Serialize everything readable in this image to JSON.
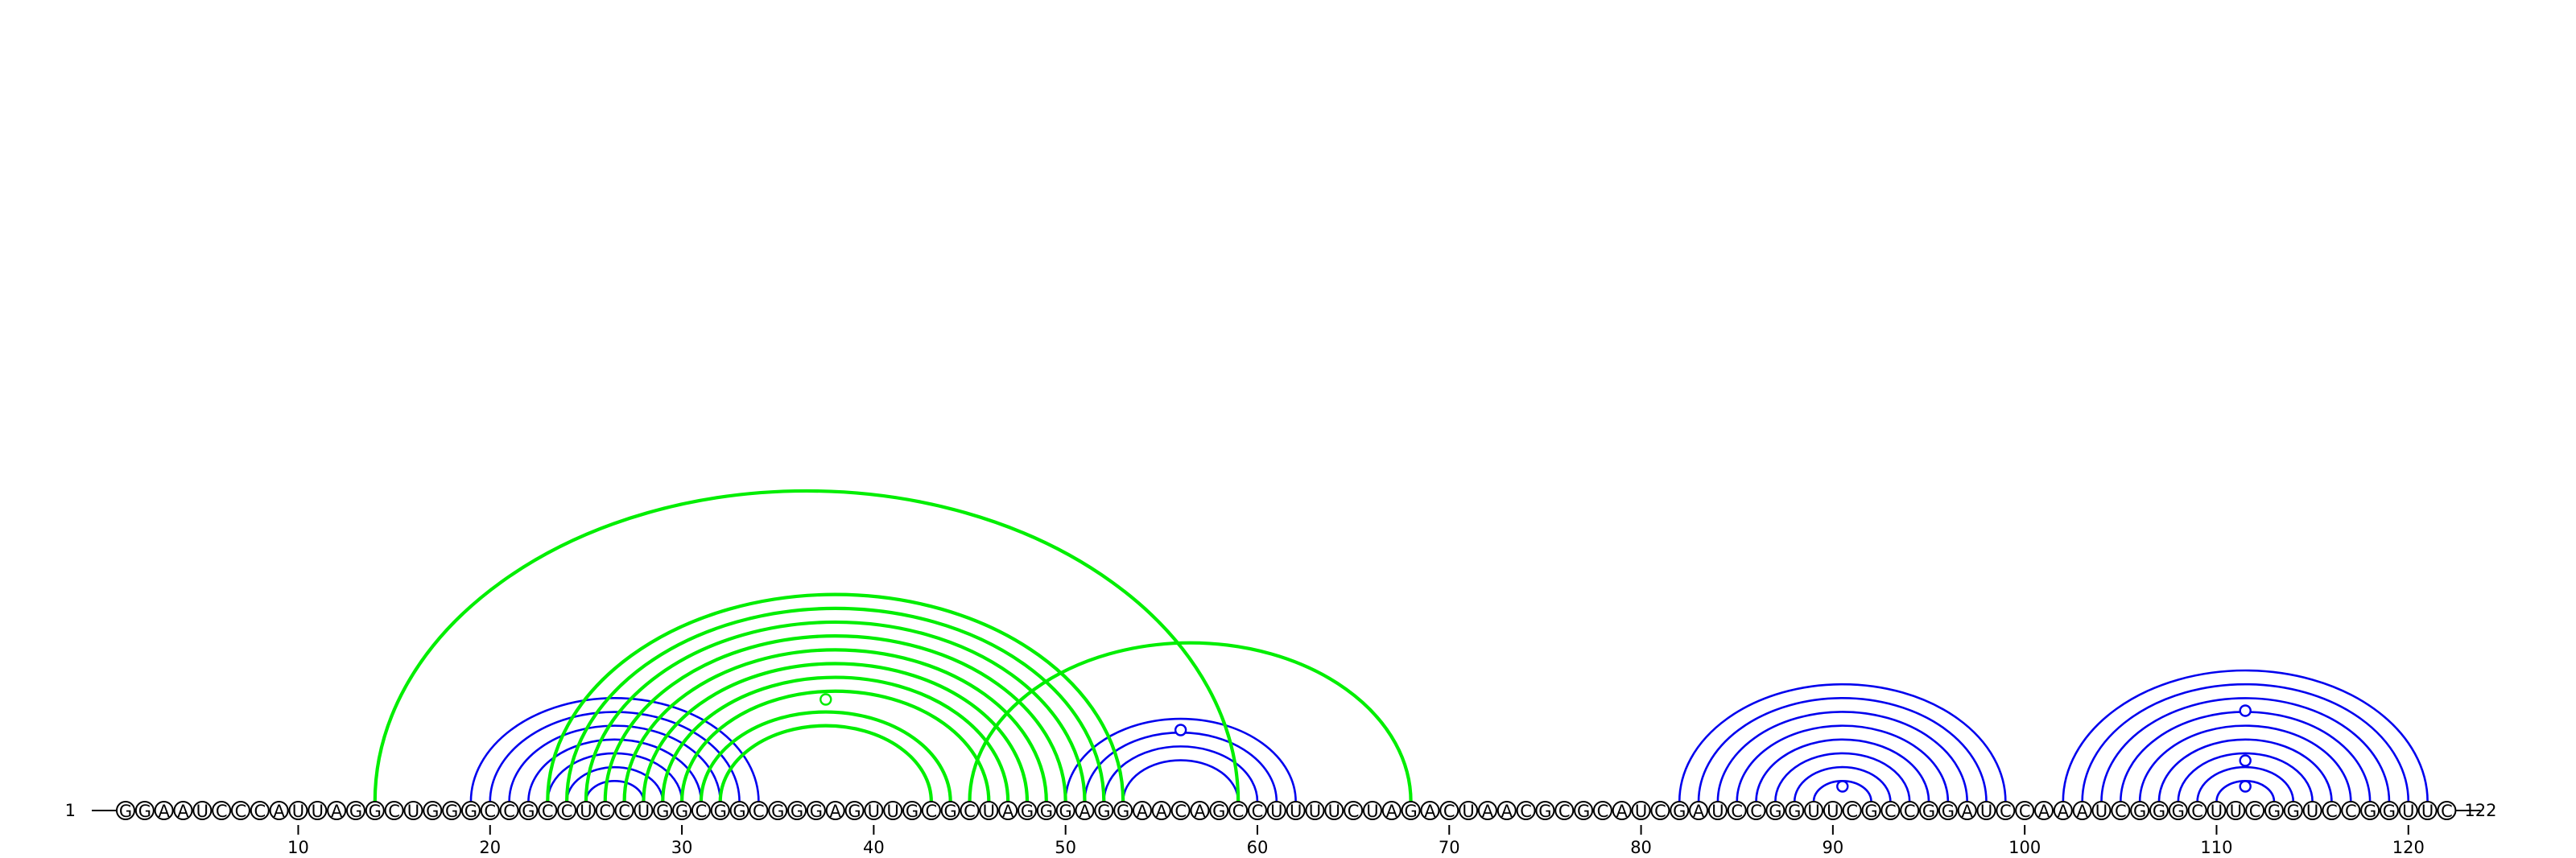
{
  "diagram": {
    "type": "rna-arc-diagram",
    "sequence": "GGAAUCCCAUUAGGCUGGGCCGCCUCCUGGCGGCGGGAGUUGCGCUAGGGAGGAACAGCCUUUUCUAGACUAACGCGCAUCGAUCCGGUUCGCCGGAUCCAAAUCGGGCUUCGGUCCGGUUC",
    "start_label": "1",
    "end_label": "122",
    "axis_ticks": [
      10,
      20,
      30,
      40,
      50,
      60,
      70,
      80,
      90,
      100,
      110,
      120
    ],
    "colors": {
      "blue": "#0000ee",
      "green": "#00ee00",
      "text": "#000000"
    },
    "arc_sets": [
      {
        "name": "blue-pairs",
        "color": "blue",
        "pairs": [
          [
            19,
            34
          ],
          [
            20,
            33
          ],
          [
            21,
            32
          ],
          [
            22,
            31
          ],
          [
            23,
            30
          ],
          [
            24,
            29
          ],
          [
            25,
            28
          ],
          [
            50,
            62
          ],
          [
            51,
            61
          ],
          [
            52,
            60
          ],
          [
            53,
            59
          ],
          [
            82,
            99
          ],
          [
            83,
            98
          ],
          [
            84,
            97
          ],
          [
            85,
            96
          ],
          [
            86,
            95
          ],
          [
            87,
            94
          ],
          [
            88,
            93
          ],
          [
            89,
            92
          ],
          [
            102,
            121
          ],
          [
            103,
            120
          ],
          [
            104,
            119
          ],
          [
            105,
            118
          ],
          [
            106,
            117
          ],
          [
            107,
            116
          ],
          [
            108,
            115
          ],
          [
            109,
            114
          ],
          [
            110,
            113
          ]
        ]
      },
      {
        "name": "green-pairs",
        "color": "green",
        "pairs": [
          [
            14,
            59
          ],
          [
            23,
            53
          ],
          [
            24,
            52
          ],
          [
            25,
            51
          ],
          [
            26,
            50
          ],
          [
            27,
            49
          ],
          [
            28,
            48
          ],
          [
            29,
            47
          ],
          [
            30,
            46
          ],
          [
            31,
            44
          ],
          [
            32,
            43
          ],
          [
            45,
            68
          ]
        ]
      }
    ],
    "markers": [
      {
        "color": "blue",
        "pos": 56
      },
      {
        "color": "green",
        "pos": 37.5
      },
      {
        "color": "blue",
        "pos": 90.5
      },
      {
        "color": "blue",
        "pos": 111.5
      },
      {
        "color": "blue",
        "pos": 111.5,
        "level": 2
      },
      {
        "color": "blue",
        "pos": 111.5,
        "level": 3
      }
    ]
  }
}
